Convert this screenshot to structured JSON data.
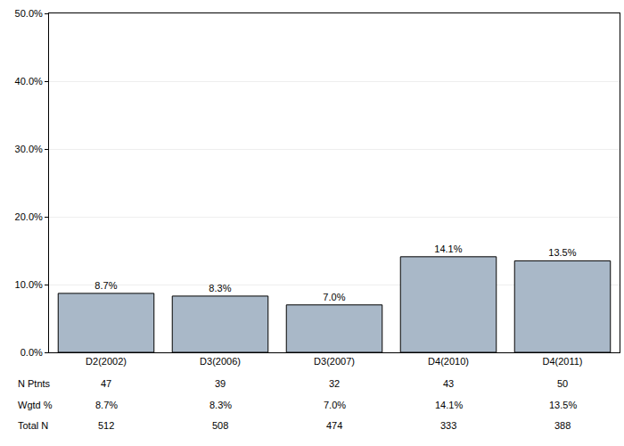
{
  "chart_data": {
    "type": "bar",
    "categories": [
      "D2(2002)",
      "D3(2006)",
      "D3(2007)",
      "D4(2010)",
      "D4(2011)"
    ],
    "values": [
      8.7,
      8.3,
      7.0,
      14.1,
      13.5
    ],
    "value_labels": [
      "8.7%",
      "8.3%",
      "7.0%",
      "14.1%",
      "13.5%"
    ],
    "data_labels": true,
    "color": "#a9b8c8",
    "ylim": [
      0,
      50
    ],
    "yticks": [
      {
        "value": 0,
        "label": "0.0%"
      },
      {
        "value": 10,
        "label": "10.0%"
      },
      {
        "value": 20,
        "label": "20.0%"
      },
      {
        "value": 30,
        "label": "30.0%"
      },
      {
        "value": 40,
        "label": "40.0%"
      },
      {
        "value": 50,
        "label": "50.0%"
      }
    ],
    "grid": true,
    "table": [
      {
        "label": "N Ptnts",
        "values": [
          47,
          39,
          32,
          43,
          50
        ]
      },
      {
        "label": "Wgtd %",
        "values": [
          8.7,
          8.3,
          7.0,
          14.1,
          13.5
        ],
        "value_labels": [
          "8.7%",
          "8.3%",
          "7.0%",
          "14.1%",
          "13.5%"
        ]
      },
      {
        "label": "Total N",
        "values": [
          512,
          508,
          474,
          333,
          388
        ]
      }
    ]
  }
}
